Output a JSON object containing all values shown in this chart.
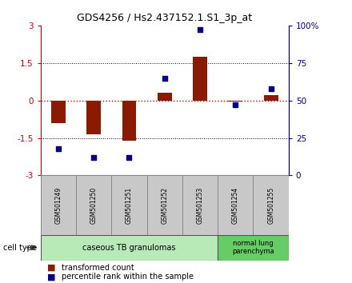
{
  "title": "GDS4256 / Hs2.437152.1.S1_3p_at",
  "samples": [
    "GSM501249",
    "GSM501250",
    "GSM501251",
    "GSM501252",
    "GSM501253",
    "GSM501254",
    "GSM501255"
  ],
  "transformed_count": [
    -0.9,
    -1.35,
    -1.6,
    0.3,
    1.75,
    -0.05,
    0.2
  ],
  "percentile_rank": [
    18,
    12,
    12,
    65,
    97,
    47,
    58
  ],
  "ylim_left": [
    -3,
    3
  ],
  "ylim_right": [
    0,
    100
  ],
  "yticks_left": [
    -3,
    -1.5,
    0,
    1.5,
    3
  ],
  "yticks_right": [
    0,
    25,
    50,
    75,
    100
  ],
  "ytick_labels_right": [
    "0",
    "25",
    "50",
    "75",
    "100%"
  ],
  "bar_color": "#8B1A00",
  "dot_color": "#00008B",
  "zero_line_color": "#CC0000",
  "cell_type_group1_color": "#B8EAB8",
  "cell_type_group2_color": "#66CC66",
  "sample_box_color": "#C8C8C8",
  "cell_types": [
    {
      "label": "caseous TB granulomas",
      "n": 5,
      "color": "#B8EAB8"
    },
    {
      "label": "normal lung\nparenchyma",
      "n": 2,
      "color": "#66CC66"
    }
  ],
  "legend_bar_label": "transformed count",
  "legend_dot_label": "percentile rank within the sample",
  "cell_type_label": "cell type",
  "bar_width": 0.4,
  "bg_color": "#FFFFFF"
}
